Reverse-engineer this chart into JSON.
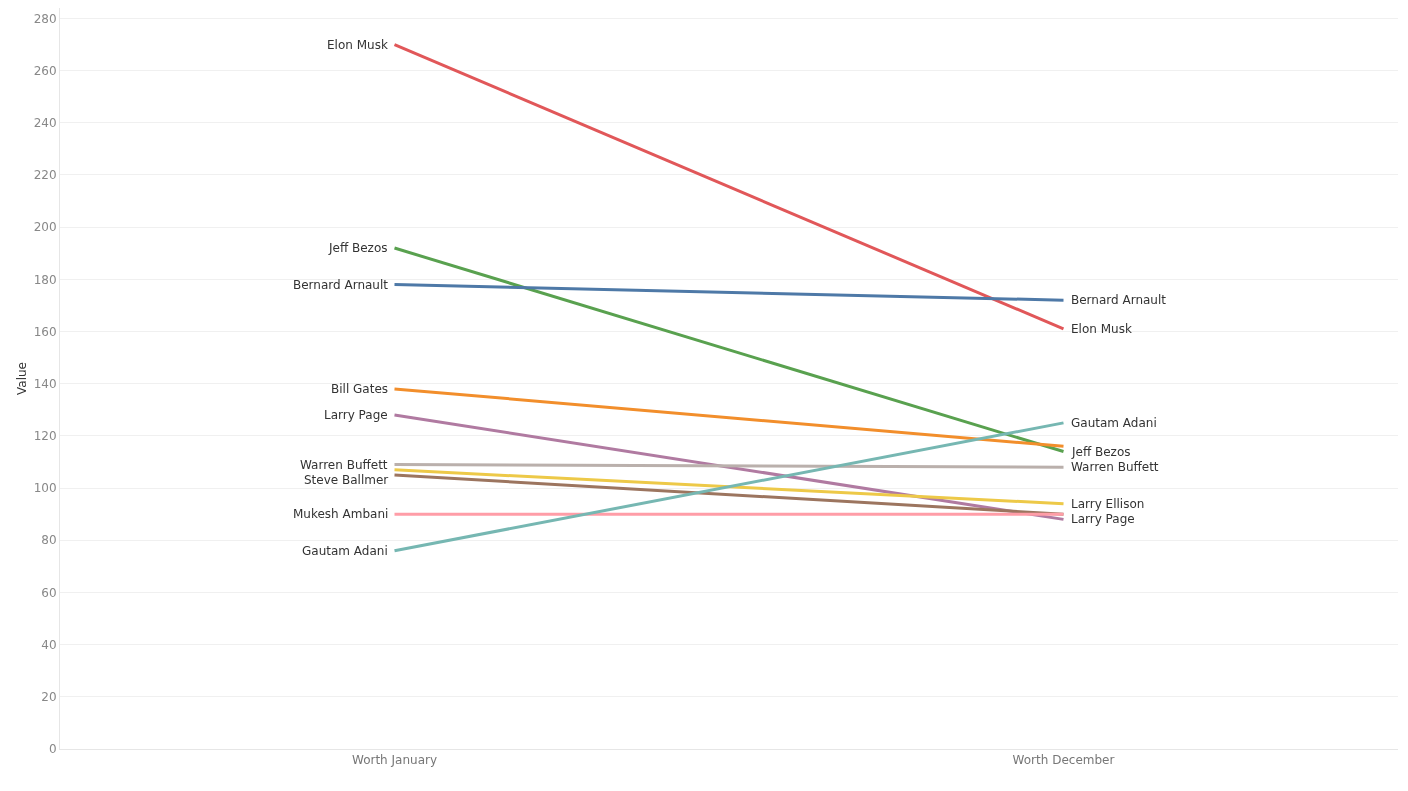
{
  "chart_data": {
    "type": "line",
    "ylabel": "Value",
    "categories": [
      "Worth January",
      "Worth December"
    ],
    "ylim": [
      0,
      284
    ],
    "yticks": [
      0,
      20,
      40,
      60,
      80,
      100,
      120,
      140,
      160,
      180,
      200,
      220,
      240,
      260,
      280
    ],
    "grid": "y",
    "legend": false,
    "marker": "none",
    "line_style": "solid",
    "series": [
      {
        "color": "#e15759",
        "values": [
          270,
          161
        ]
      },
      {
        "color": "#59a14f",
        "values": [
          192,
          114
        ]
      },
      {
        "color": "#4e79a7",
        "values": [
          178,
          172
        ]
      },
      {
        "color": "#f28e2b",
        "values": [
          138,
          116
        ]
      },
      {
        "color": "#b07aa1",
        "values": [
          128,
          88
        ]
      },
      {
        "color": "#bab0ac",
        "values": [
          109,
          108
        ]
      },
      {
        "color": "#9c755f",
        "values": [
          105,
          90
        ]
      },
      {
        "color": "#edc948",
        "values": [
          107,
          94
        ]
      },
      {
        "color": "#ff9da7",
        "values": [
          90,
          90
        ]
      },
      {
        "color": "#76b7b2",
        "values": [
          76,
          125
        ]
      }
    ],
    "annotations": [
      {
        "text": "Elon Musk",
        "x": "Worth January",
        "y": 270
      },
      {
        "text": "Jeff Bezos",
        "x": "Worth January",
        "y": 192
      },
      {
        "text": "Bernard Arnault",
        "x": "Worth January",
        "y": 178
      },
      {
        "text": "Bill Gates",
        "x": "Worth January",
        "y": 138
      },
      {
        "text": "Larry Page",
        "x": "Worth January",
        "y": 128
      },
      {
        "text": "Warren Buffett",
        "x": "Worth January",
        "y": 109
      },
      {
        "text": "Steve Ballmer",
        "x": "Worth January",
        "y": 105
      },
      {
        "text": "Mukesh Ambani",
        "x": "Worth January",
        "y": 90
      },
      {
        "text": "Gautam Adani",
        "x": "Worth January",
        "y": 76
      },
      {
        "text": "Bernard Arnault",
        "x": "Worth December",
        "y": 172
      },
      {
        "text": "Elon Musk",
        "x": "Worth December",
        "y": 161
      },
      {
        "text": "Gautam Adani",
        "x": "Worth December",
        "y": 125
      },
      {
        "text": "Jeff Bezos",
        "x": "Worth December",
        "y": 114
      },
      {
        "text": "Warren Buffett",
        "x": "Worth December",
        "y": 108
      },
      {
        "text": "Larry Ellison",
        "x": "Worth December",
        "y": 94
      },
      {
        "text": "Larry Page",
        "x": "Worth December",
        "y": 88
      }
    ]
  }
}
